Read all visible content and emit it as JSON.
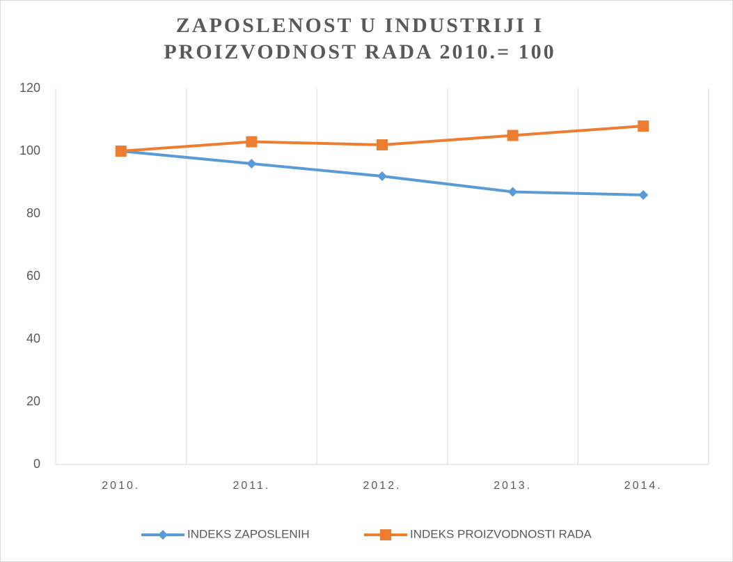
{
  "chart_data": {
    "type": "line",
    "title": "ZAPOSLENOST U INDUSTRIJI I PROIZVODNOST RADA 2010.= 100",
    "categories": [
      "2010.",
      "2011.",
      "2012.",
      "2013.",
      "2014."
    ],
    "series": [
      {
        "name": "INDEKS ZAPOSLENIH",
        "color": "#5b9bd5",
        "marker": "diamond",
        "values": [
          100,
          96,
          92,
          87,
          86
        ]
      },
      {
        "name": "INDEKS PROIZVODNOSTI RADA",
        "color": "#ed7d31",
        "marker": "square",
        "values": [
          100,
          103,
          102,
          105,
          108
        ]
      }
    ],
    "ylim": [
      0,
      120
    ],
    "yticks": [
      0,
      20,
      40,
      60,
      80,
      100,
      120
    ],
    "legend": "bottom"
  }
}
